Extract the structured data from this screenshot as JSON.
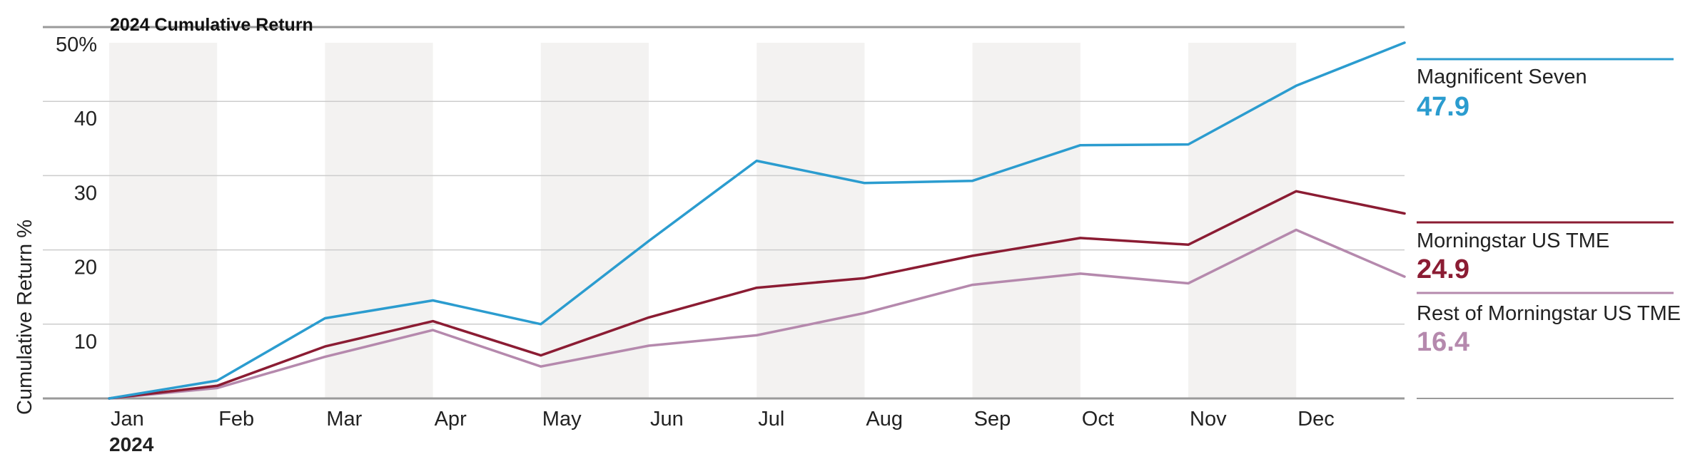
{
  "chart_data": {
    "type": "line",
    "title": "2024 Cumulative Return",
    "ylabel": "Cumulative Return %",
    "xlabel_year": "2024",
    "ylim": [
      0,
      50
    ],
    "y_ticks": [
      10,
      20,
      30,
      40,
      50
    ],
    "y_tick_labels": [
      "10",
      "20",
      "30",
      "40",
      "50%"
    ],
    "x_tick_labels": [
      "Jan",
      "Feb",
      "Mar",
      "Apr",
      "May",
      "Jun",
      "Jul",
      "Aug",
      "Sep",
      "Oct",
      "Nov",
      "Dec"
    ],
    "x": [
      "Jan 2024",
      "Feb 2024",
      "Mar 2024",
      "Apr 2024",
      "May 2024",
      "Jun 2024",
      "Jul 2024",
      "Aug 2024",
      "Sep 2024",
      "Oct 2024",
      "Nov 2024",
      "Dec 2024",
      "Dec 31 2024"
    ],
    "grid": true,
    "alternating_month_shading": true,
    "legend_position": "right",
    "series": [
      {
        "name": "Magnificent Seven",
        "color": "#2b9ccf",
        "label_value": "47.9",
        "values": [
          0,
          2.4,
          10.8,
          13.2,
          10.0,
          21.2,
          32.0,
          29.0,
          29.3,
          34.1,
          34.2,
          42.1,
          47.9
        ]
      },
      {
        "name": "Morningstar US TME",
        "color": "#8b1c33",
        "label_value": "24.9",
        "values": [
          0,
          1.7,
          7.0,
          10.4,
          5.8,
          10.9,
          14.9,
          16.2,
          19.2,
          21.6,
          20.7,
          27.9,
          24.9
        ]
      },
      {
        "name": "Rest of Morningstar US TME",
        "color": "#b589ad",
        "label_value": "16.4",
        "values": [
          0,
          1.4,
          5.6,
          9.2,
          4.3,
          7.1,
          8.5,
          11.5,
          15.3,
          16.8,
          15.5,
          22.7,
          16.4
        ]
      }
    ]
  }
}
